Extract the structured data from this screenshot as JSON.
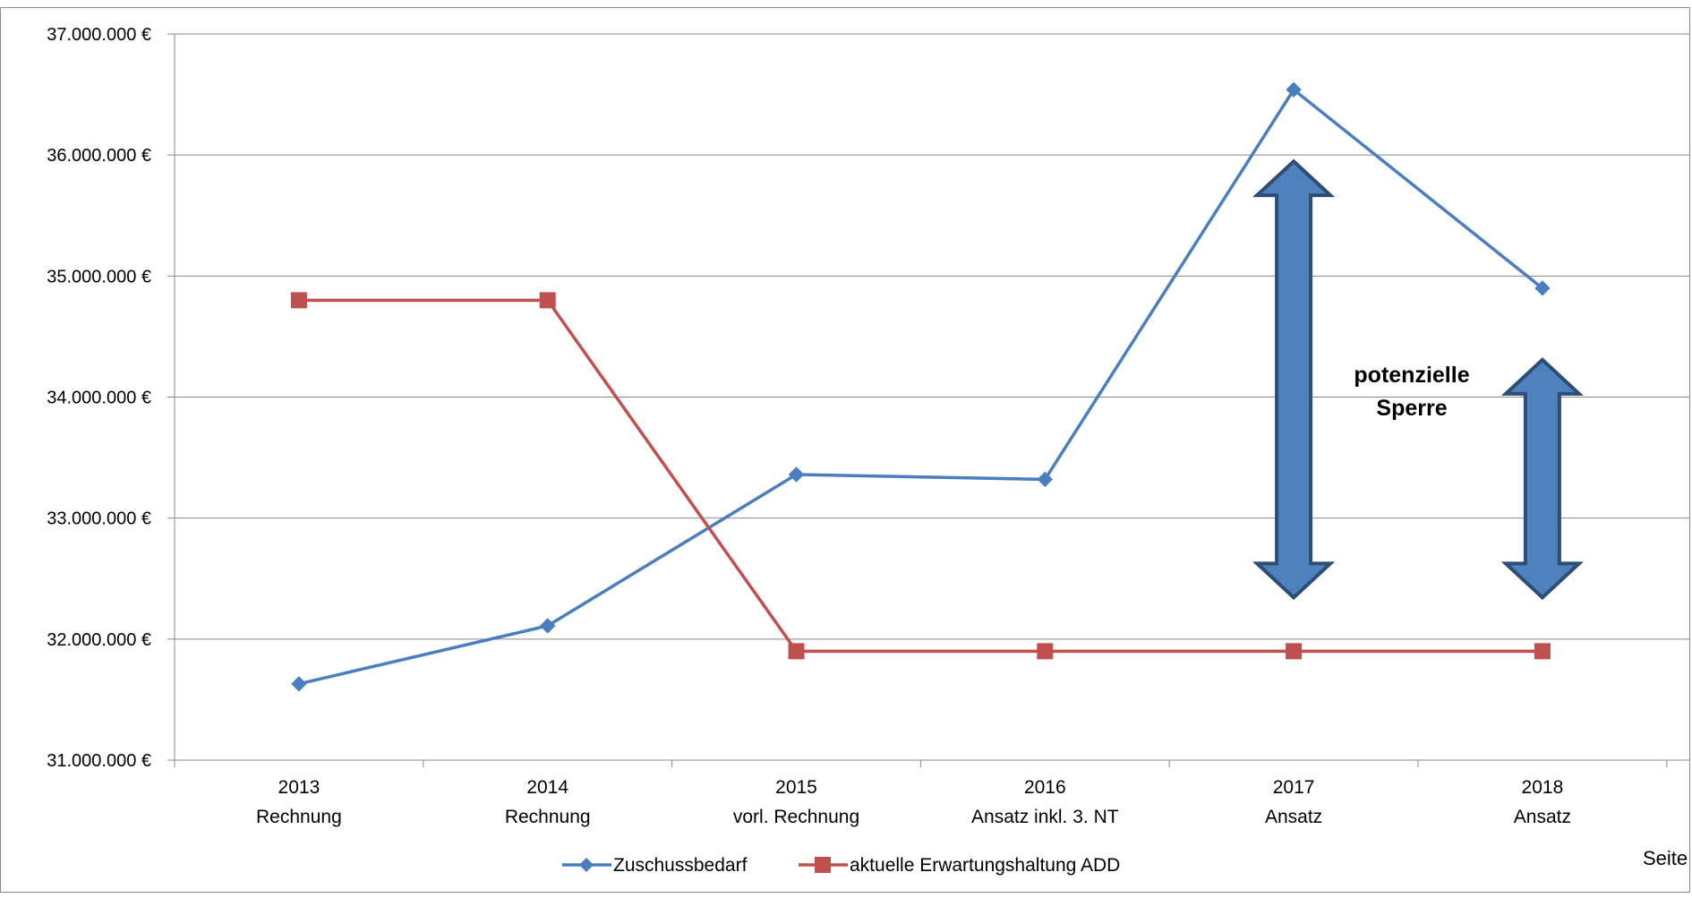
{
  "chart_data": {
    "type": "line",
    "title": "",
    "xlabel": "",
    "ylabel": "",
    "ylim": [
      31000000,
      37000000
    ],
    "y_ticks": [
      {
        "value": 31000000,
        "label": "31.000.000 €"
      },
      {
        "value": 32000000,
        "label": "32.000.000 €"
      },
      {
        "value": 33000000,
        "label": "33.000.000 €"
      },
      {
        "value": 34000000,
        "label": "34.000.000 €"
      },
      {
        "value": 35000000,
        "label": "35.000.000 €"
      },
      {
        "value": 36000000,
        "label": "36.000.000 €"
      },
      {
        "value": 37000000,
        "label": "37.000.000 €"
      }
    ],
    "categories": [
      {
        "year": "2013",
        "sub": "Rechnung"
      },
      {
        "year": "2014",
        "sub": "Rechnung"
      },
      {
        "year": "2015",
        "sub": "vorl. Rechnung"
      },
      {
        "year": "2016",
        "sub": "Ansatz inkl. 3. NT"
      },
      {
        "year": "2017",
        "sub": "Ansatz"
      },
      {
        "year": "2018",
        "sub": "Ansatz"
      }
    ],
    "series": [
      {
        "name": "Zuschussbedarf",
        "color": "#4a7ebf",
        "marker": "diamond",
        "values": [
          31630000,
          32110000,
          33360000,
          33320000,
          36540000,
          34900000
        ]
      },
      {
        "name": "aktuelle Erwartungshaltung ADD",
        "color": "#c0504d",
        "marker": "square",
        "values": [
          34800000,
          34800000,
          31900000,
          31900000,
          31900000,
          31900000
        ]
      }
    ],
    "grid": true,
    "legend_position": "bottom",
    "annotation": {
      "lines": [
        "potenzielle",
        "Sperre"
      ]
    },
    "double_arrows": [
      {
        "category_index": 4,
        "from": 31900000,
        "to": 36540000
      },
      {
        "category_index": 5,
        "from": 31900000,
        "to": 34900000
      }
    ],
    "arrow_color": "#4f81bd"
  },
  "footer": {
    "page_label": "Seite"
  }
}
